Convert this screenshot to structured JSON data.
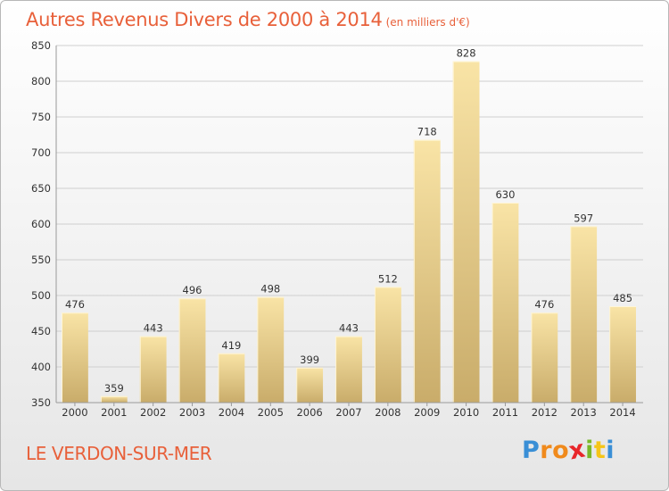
{
  "title": "Autres Revenus Divers de 2000 à 2014",
  "subtitle": "(en milliers d'€)",
  "location": "LE VERDON-SUR-MER",
  "logo": {
    "letters": [
      "P",
      "r",
      "o",
      "x",
      "i",
      "t",
      "i"
    ],
    "colors": [
      "#3a8fd6",
      "#f08a1c",
      "#f08a1c",
      "#e8262a",
      "#7ab828",
      "#f5c518",
      "#3a8fd6"
    ]
  },
  "colors": {
    "title": "#e8603a",
    "bar_light": "#f9e4a6",
    "bar_dark": "#c9ac6a",
    "grid": "#cfcfcf"
  },
  "chart_data": {
    "type": "bar",
    "title": "Autres Revenus Divers de 2000 à 2014",
    "subtitle": "(en milliers d'€)",
    "categories": [
      "2000",
      "2001",
      "2002",
      "2003",
      "2004",
      "2005",
      "2006",
      "2007",
      "2008",
      "2009",
      "2010",
      "2011",
      "2012",
      "2013",
      "2014"
    ],
    "values": [
      476,
      359,
      443,
      496,
      419,
      498,
      399,
      443,
      512,
      718,
      828,
      630,
      476,
      597,
      485
    ],
    "ylim": [
      350,
      850
    ],
    "yticks": [
      350,
      400,
      450,
      500,
      550,
      600,
      650,
      700,
      750,
      800,
      850
    ],
    "grid": true,
    "xlabel": "",
    "ylabel": ""
  }
}
